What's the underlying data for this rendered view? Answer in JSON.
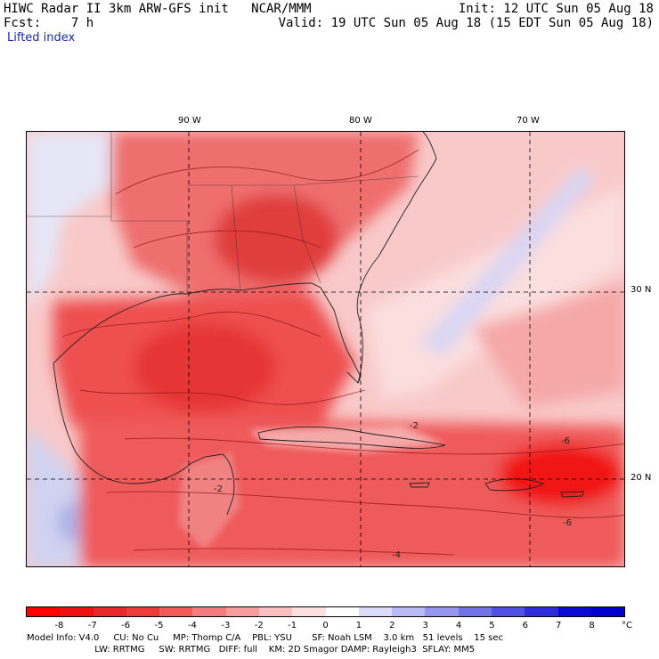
{
  "header": {
    "line1_left": "HIWC Radar II 3km ARW-GFS init   NCAR/MMM",
    "line1_right": "Init: 12 UTC Sun 05 Aug 18",
    "line2_left": "Fcst:    7 h",
    "line2_right": "Valid: 19 UTC Sun 05 Aug 18 (15 EDT Sun 05 Aug 18)",
    "field": "Lifted index"
  },
  "map": {
    "lon_labels": [
      "90 W",
      "80 W",
      "70 W"
    ],
    "lat_labels": [
      "30 N",
      "20 N"
    ],
    "contour_labels": [
      "-2",
      "-2",
      "-6",
      "-6",
      "-4"
    ]
  },
  "colorbar": {
    "ticks": [
      "-8",
      "-7",
      "-6",
      "-5",
      "-4",
      "-3",
      "-2",
      "-1",
      "0",
      "1",
      "2",
      "3",
      "4",
      "5",
      "6",
      "7",
      "8"
    ],
    "unit": "°C",
    "colors": [
      "#ff0000",
      "#f01010",
      "#e82828",
      "#ee3a3a",
      "#f25a5a",
      "#f47c7c",
      "#f69c9c",
      "#f8c0c0",
      "#fce0e0",
      "#ffffff",
      "#dcdcf8",
      "#b9b9f4",
      "#9696ee",
      "#7373e8",
      "#5050e2",
      "#2d2ddc",
      "#0a0ad6",
      "#0000cc"
    ]
  },
  "footer": {
    "line1": "Model Info: V4.0     CU: No Cu     MP: Thomp C/A    PBL: YSU       SF: Noah LSM    3.0 km   51 levels    15 sec",
    "line2": "                        LW: RRTMG     SW: RRTMG   DIFF: full    KM: 2D Smagor DAMP: Rayleigh3  SFLAY: MM5"
  }
}
